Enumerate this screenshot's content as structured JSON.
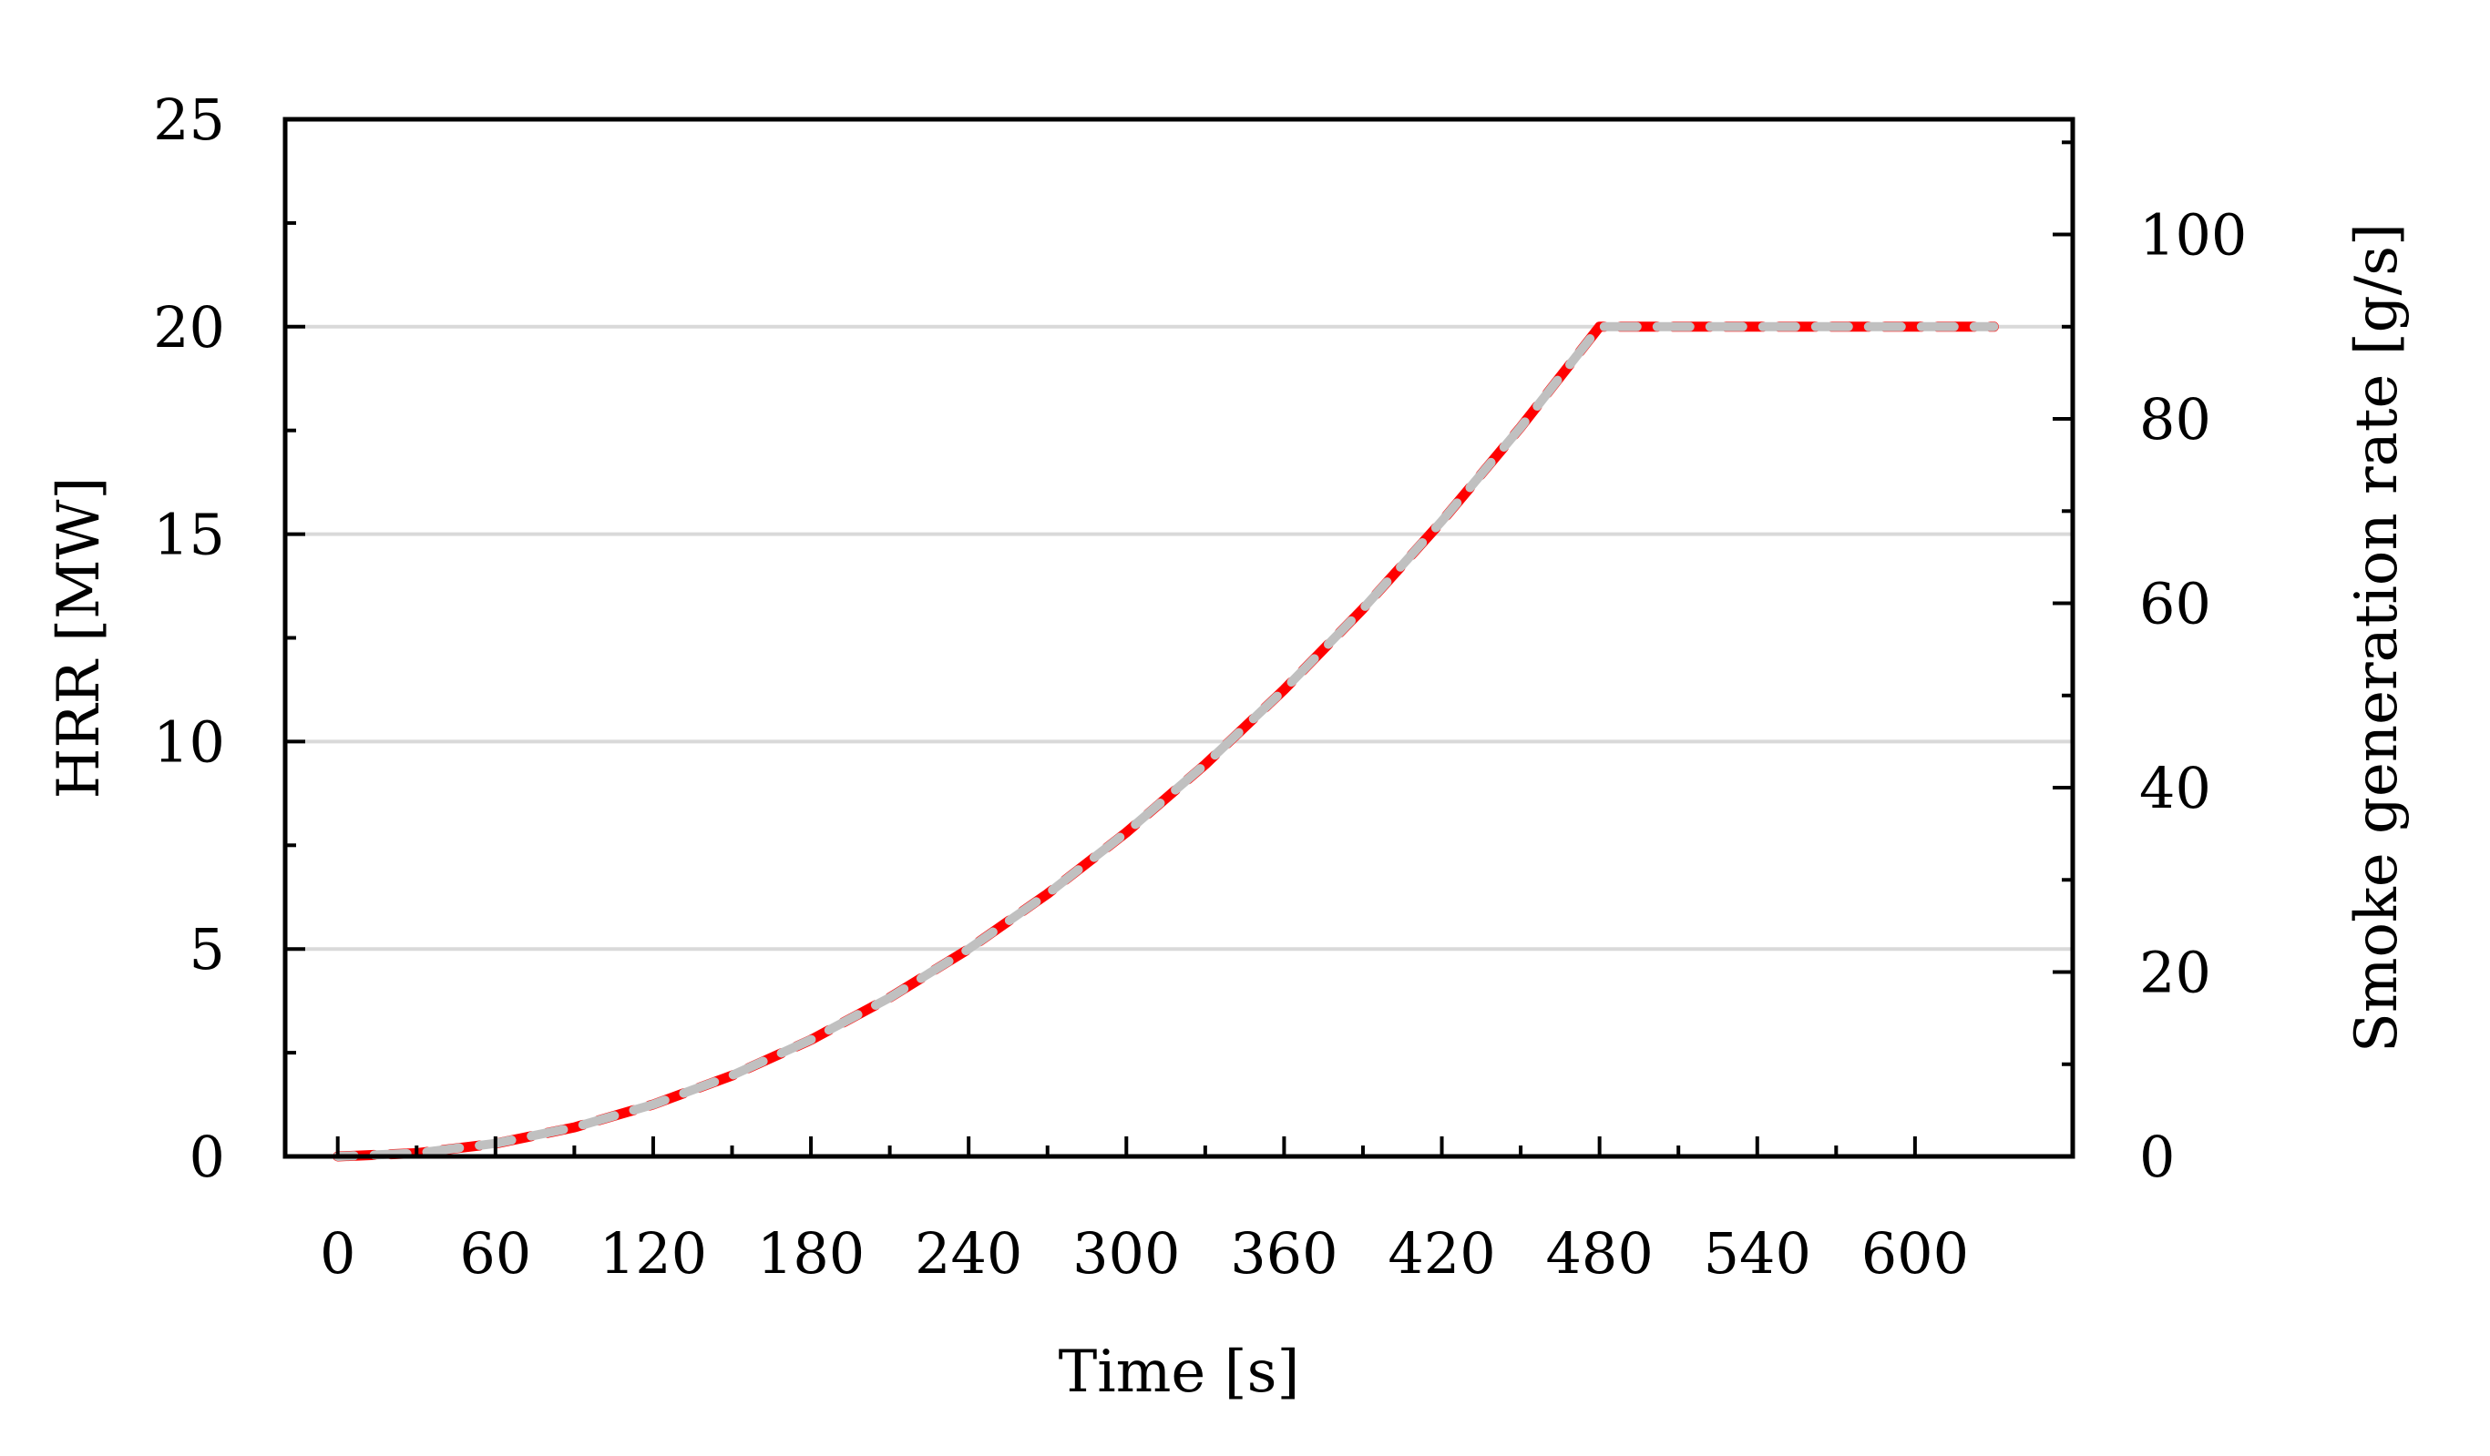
{
  "chart_data": {
    "type": "line",
    "xlabel": "Time [s]",
    "ylabel": "HRR [MW]",
    "y2label": "Smoke generation rate [g/s]",
    "xlim": [
      -20,
      660
    ],
    "ylim": [
      0,
      25
    ],
    "y2lim": [
      0,
      112.5
    ],
    "x_ticks": [
      0,
      60,
      120,
      180,
      240,
      300,
      360,
      420,
      480,
      540,
      600
    ],
    "y_ticks": [
      0,
      5,
      10,
      15,
      20,
      25
    ],
    "y2_ticks": [
      0,
      20,
      40,
      60,
      80,
      100
    ],
    "grid": "horizontal",
    "series": [
      {
        "axis": "left",
        "color": "#ff0000",
        "style": "dashed",
        "x": [
          0,
          30,
          60,
          90,
          120,
          150,
          180,
          210,
          240,
          270,
          300,
          330,
          360,
          390,
          420,
          450,
          480,
          510,
          540,
          570,
          600,
          630
        ],
        "values": [
          0,
          0.08,
          0.31,
          0.7,
          1.25,
          1.95,
          2.81,
          3.83,
          5.0,
          6.33,
          7.81,
          9.45,
          11.25,
          13.2,
          15.31,
          17.58,
          20.0,
          20.0,
          20.0,
          20.0,
          20.0,
          20.0
        ]
      },
      {
        "axis": "right",
        "color": "#c0c0c0",
        "style": "dashed",
        "x": [
          0,
          30,
          60,
          90,
          120,
          150,
          180,
          210,
          240,
          270,
          300,
          330,
          360,
          390,
          420,
          450,
          480,
          510,
          540,
          570,
          600,
          630
        ],
        "values": [
          0,
          0.35,
          1.41,
          3.16,
          5.63,
          8.79,
          12.66,
          17.23,
          22.5,
          28.48,
          35.16,
          42.54,
          50.63,
          59.41,
          68.91,
          79.1,
          90.0,
          90.0,
          90.0,
          90.0,
          90.0,
          90.0
        ]
      }
    ]
  }
}
